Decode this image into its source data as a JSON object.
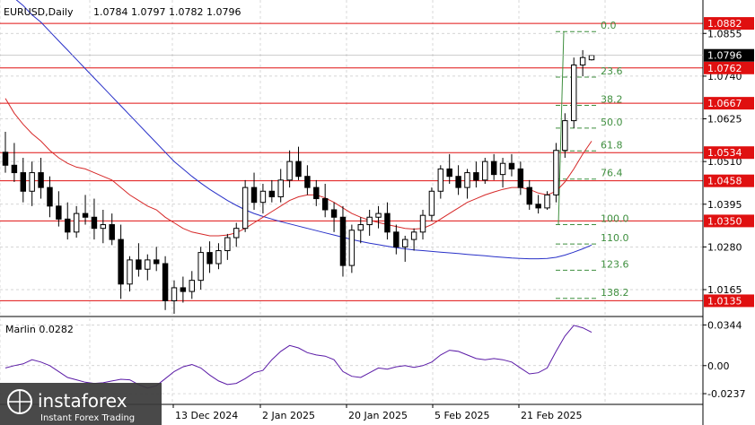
{
  "header": {
    "symbol": "EURUSD,Daily",
    "ohlc": "1.0784 1.0797 1.0782 1.0796"
  },
  "marlin": {
    "label": "Marlin 0.0282"
  },
  "logo": {
    "brand": "instaforex",
    "tagline": "Instant Forex Trading"
  },
  "colors": {
    "ma_red": "#d62828",
    "ma_blue": "#2830c8",
    "level_red": "#e01010",
    "fib_green": "#3f8f3f",
    "marlin": "#5a1aa6",
    "grid": "#c8c8c8"
  },
  "chart_data": [
    {
      "type": "candlestick",
      "ylim": [
        1.0095,
        1.0945
      ],
      "y_ticks": [
        1.0855,
        1.074,
        1.0625,
        1.051,
        1.0395,
        1.028,
        1.0165
      ],
      "x_labels": [
        "13 Dec 2024",
        "2 Jan 2025",
        "20 Jan 2025",
        "5 Feb 2025",
        "21 Feb 2025"
      ],
      "ohlc": [
        [
          1.0535,
          1.059,
          1.048,
          1.05
        ],
        [
          1.05,
          1.056,
          1.0455,
          1.048
        ],
        [
          1.048,
          1.052,
          1.04,
          1.043
        ],
        [
          1.043,
          1.051,
          1.039,
          1.048
        ],
        [
          1.048,
          1.052,
          1.041,
          1.044
        ],
        [
          1.044,
          1.047,
          1.036,
          1.039
        ],
        [
          1.039,
          1.043,
          1.0335,
          1.0355
        ],
        [
          1.0355,
          1.04,
          1.03,
          1.032
        ],
        [
          1.032,
          1.039,
          1.0305,
          1.037
        ],
        [
          1.037,
          1.042,
          1.034,
          1.036
        ],
        [
          1.036,
          1.041,
          1.03,
          1.033
        ],
        [
          1.033,
          1.038,
          1.029,
          1.034
        ],
        [
          1.034,
          1.037,
          1.0285,
          1.03
        ],
        [
          1.03,
          1.034,
          1.014,
          1.018
        ],
        [
          1.018,
          1.0255,
          1.016,
          1.0245
        ],
        [
          1.0245,
          1.029,
          1.02,
          1.022
        ],
        [
          1.022,
          1.026,
          1.019,
          1.0245
        ],
        [
          1.0245,
          1.028,
          1.0215,
          1.0235
        ],
        [
          1.0235,
          1.0255,
          1.011,
          1.0135
        ],
        [
          1.0135,
          1.019,
          1.01,
          1.017
        ],
        [
          1.017,
          1.02,
          1.013,
          1.016
        ],
        [
          1.016,
          1.0215,
          1.014,
          1.019
        ],
        [
          1.019,
          1.028,
          1.0165,
          1.0265
        ],
        [
          1.0265,
          1.0295,
          1.021,
          1.0235
        ],
        [
          1.0235,
          1.029,
          1.022,
          1.027
        ],
        [
          1.027,
          1.0315,
          1.0245,
          1.0305
        ],
        [
          1.0305,
          1.0345,
          1.028,
          1.033
        ],
        [
          1.033,
          1.046,
          1.032,
          1.044
        ],
        [
          1.044,
          1.048,
          1.038,
          1.04
        ],
        [
          1.04,
          1.045,
          1.037,
          1.043
        ],
        [
          1.043,
          1.046,
          1.04,
          1.0415
        ],
        [
          1.0415,
          1.049,
          1.04,
          1.046
        ],
        [
          1.046,
          1.054,
          1.044,
          1.051
        ],
        [
          1.051,
          1.055,
          1.046,
          1.047
        ],
        [
          1.047,
          1.05,
          1.042,
          1.044
        ],
        [
          1.044,
          1.046,
          1.039,
          1.041
        ],
        [
          1.041,
          1.045,
          1.036,
          1.038
        ],
        [
          1.038,
          1.04,
          1.032,
          1.036
        ],
        [
          1.036,
          1.039,
          1.02,
          1.023
        ],
        [
          1.023,
          1.034,
          1.021,
          1.0325
        ],
        [
          1.0325,
          1.036,
          1.029,
          1.034
        ],
        [
          1.034,
          1.038,
          1.031,
          1.036
        ],
        [
          1.036,
          1.039,
          1.033,
          1.037
        ],
        [
          1.037,
          1.04,
          1.03,
          1.032
        ],
        [
          1.032,
          1.034,
          1.026,
          1.028
        ],
        [
          1.028,
          1.031,
          1.024,
          1.03
        ],
        [
          1.03,
          1.033,
          1.027,
          1.032
        ],
        [
          1.032,
          1.038,
          1.03,
          1.0365
        ],
        [
          1.0365,
          1.044,
          1.035,
          1.043
        ],
        [
          1.043,
          1.05,
          1.041,
          1.049
        ],
        [
          1.049,
          1.053,
          1.045,
          1.047
        ],
        [
          1.047,
          1.05,
          1.042,
          1.044
        ],
        [
          1.044,
          1.049,
          1.041,
          1.048
        ],
        [
          1.048,
          1.051,
          1.044,
          1.046
        ],
        [
          1.046,
          1.052,
          1.045,
          1.051
        ],
        [
          1.051,
          1.053,
          1.046,
          1.0475
        ],
        [
          1.0475,
          1.052,
          1.044,
          1.0505
        ],
        [
          1.0505,
          1.053,
          1.047,
          1.049
        ],
        [
          1.049,
          1.051,
          1.042,
          1.044
        ],
        [
          1.044,
          1.046,
          1.038,
          1.0395
        ],
        [
          1.0395,
          1.042,
          1.037,
          1.0385
        ],
        [
          1.0385,
          1.043,
          1.038,
          1.042
        ],
        [
          1.042,
          1.056,
          1.04,
          1.054
        ],
        [
          1.054,
          1.064,
          1.052,
          1.062
        ],
        [
          1.062,
          1.079,
          1.06,
          1.077
        ],
        [
          1.077,
          1.081,
          1.074,
          1.079
        ],
        [
          1.0784,
          1.0797,
          1.0782,
          1.0796
        ]
      ],
      "ma_red": [
        1.068,
        1.064,
        1.061,
        1.0585,
        1.0565,
        1.054,
        1.052,
        1.0505,
        1.0495,
        1.049,
        1.048,
        1.047,
        1.046,
        1.044,
        1.042,
        1.0405,
        1.039,
        1.038,
        1.036,
        1.0345,
        1.033,
        1.032,
        1.0315,
        1.031,
        1.031,
        1.0312,
        1.0318,
        1.033,
        1.0345,
        1.036,
        1.0375,
        1.039,
        1.0405,
        1.0415,
        1.042,
        1.042,
        1.0412,
        1.04,
        1.0385,
        1.037,
        1.036,
        1.0352,
        1.0346,
        1.034,
        1.0335,
        1.033,
        1.0328,
        1.033,
        1.034,
        1.0355,
        1.037,
        1.0385,
        1.04,
        1.041,
        1.042,
        1.0428,
        1.0435,
        1.044,
        1.044,
        1.0435,
        1.0425,
        1.042,
        1.043,
        1.0455,
        1.049,
        1.053,
        1.0565
      ],
      "ma_blue": [
        1.097,
        1.095,
        1.093,
        1.0905,
        1.0885,
        1.086,
        1.0835,
        1.081,
        1.0785,
        1.076,
        1.0735,
        1.071,
        1.0685,
        1.066,
        1.0635,
        1.061,
        1.0585,
        1.056,
        1.0535,
        1.051,
        1.049,
        1.047,
        1.0452,
        1.0435,
        1.042,
        1.0405,
        1.0392,
        1.038,
        1.037,
        1.0362,
        1.0355,
        1.0348,
        1.0342,
        1.0336,
        1.033,
        1.0324,
        1.0318,
        1.0312,
        1.0306,
        1.03,
        1.0295,
        1.029,
        1.0286,
        1.0282,
        1.0278,
        1.0275,
        1.0272,
        1.027,
        1.0268,
        1.0266,
        1.0264,
        1.0262,
        1.026,
        1.0258,
        1.0256,
        1.0254,
        1.0252,
        1.025,
        1.0249,
        1.0248,
        1.0248,
        1.0249,
        1.0252,
        1.0258,
        1.0266,
        1.0275,
        1.0285
      ],
      "levels": [
        {
          "value": 1.0882,
          "label": "1.0882"
        },
        {
          "value": 1.0762,
          "label": "1.0762"
        },
        {
          "value": 1.0667,
          "label": "1.0667"
        },
        {
          "value": 1.0534,
          "label": "1.0534"
        },
        {
          "value": 1.0458,
          "label": "1.0458"
        },
        {
          "value": 1.035,
          "label": "1.0350"
        },
        {
          "value": 1.0135,
          "label": "1.0135"
        }
      ],
      "current_price": {
        "value": 1.0796,
        "label": "1.0796"
      },
      "fibonacci": {
        "from": 1.086,
        "to": 1.034,
        "levels": [
          {
            "ratio": 0.0,
            "label": "0.0"
          },
          {
            "ratio": 0.236,
            "label": "23.6"
          },
          {
            "ratio": 0.382,
            "label": "38.2"
          },
          {
            "ratio": 0.5,
            "label": "50.0"
          },
          {
            "ratio": 0.618,
            "label": "61.8"
          },
          {
            "ratio": 0.764,
            "label": "76.4"
          },
          {
            "ratio": 1.0,
            "label": "100.0"
          },
          {
            "ratio": 1.1,
            "label": "110.0"
          },
          {
            "ratio": 1.236,
            "label": "123.6"
          },
          {
            "ratio": 1.382,
            "label": "138.2"
          }
        ]
      }
    },
    {
      "type": "line",
      "name": "Marlin",
      "ylim": [
        -0.032,
        0.04
      ],
      "y_ticks": [
        {
          "value": 0.0344,
          "label": "0.0344"
        },
        {
          "value": 0.0,
          "label": "0.00"
        },
        {
          "value": -0.0237,
          "label": "-0.0237"
        }
      ],
      "values": [
        -0.002,
        0.0,
        0.0015,
        0.005,
        0.003,
        0.0,
        -0.005,
        -0.01,
        -0.012,
        -0.014,
        -0.015,
        -0.0145,
        -0.013,
        -0.0115,
        -0.012,
        -0.016,
        -0.019,
        -0.017,
        -0.011,
        -0.005,
        -0.001,
        0.001,
        -0.002,
        -0.008,
        -0.013,
        -0.016,
        -0.015,
        -0.011,
        -0.006,
        -0.004,
        0.005,
        0.012,
        0.017,
        0.015,
        0.011,
        0.009,
        0.008,
        0.005,
        -0.005,
        -0.009,
        -0.01,
        -0.006,
        -0.002,
        -0.003,
        -0.001,
        0.0,
        -0.0015,
        0.0,
        0.003,
        0.009,
        0.013,
        0.012,
        0.009,
        0.006,
        0.005,
        0.006,
        0.005,
        0.003,
        -0.002,
        -0.007,
        -0.006,
        -0.002,
        0.012,
        0.025,
        0.034,
        0.032,
        0.0282
      ]
    }
  ]
}
